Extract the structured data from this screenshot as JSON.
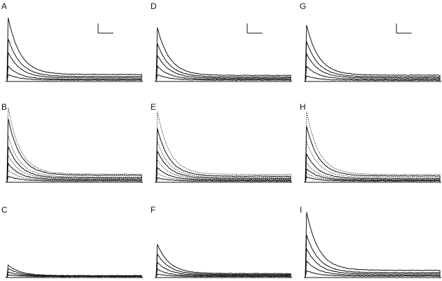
{
  "figure": {
    "panels": [
      {
        "label": "A",
        "scale_bar": true,
        "style": "solid",
        "traces": [
          0.92,
          0.62,
          0.42,
          0.22,
          0.1
        ]
      },
      {
        "label": "D",
        "scale_bar": true,
        "style": "solid",
        "traces": [
          0.78,
          0.55,
          0.38,
          0.22,
          0.1
        ]
      },
      {
        "label": "G",
        "scale_bar": true,
        "style": "solid",
        "traces": [
          0.82,
          0.58,
          0.4,
          0.22,
          0.08
        ]
      },
      {
        "label": "B",
        "scale_bar": false,
        "style": "mixed",
        "traces": [
          1.0,
          0.85,
          0.62,
          0.48,
          0.36,
          0.25,
          0.16,
          0.08
        ]
      },
      {
        "label": "E",
        "scale_bar": false,
        "style": "mixed",
        "traces": [
          0.95,
          0.72,
          0.55,
          0.42,
          0.3,
          0.2,
          0.12,
          0.06
        ]
      },
      {
        "label": "H",
        "scale_bar": false,
        "style": "mixed",
        "traces": [
          0.95,
          0.75,
          0.55,
          0.38,
          0.26,
          0.18,
          0.12,
          0.07
        ]
      },
      {
        "label": "C",
        "scale_bar": false,
        "style": "solid",
        "traces": [
          0.18,
          0.13,
          0.08,
          0.04
        ]
      },
      {
        "label": "F",
        "scale_bar": false,
        "style": "solid",
        "traces": [
          0.48,
          0.34,
          0.22,
          0.12,
          0.05
        ]
      },
      {
        "label": "I",
        "scale_bar": false,
        "style": "solid",
        "traces": [
          0.95,
          0.62,
          0.42,
          0.24,
          0.1
        ]
      }
    ]
  }
}
